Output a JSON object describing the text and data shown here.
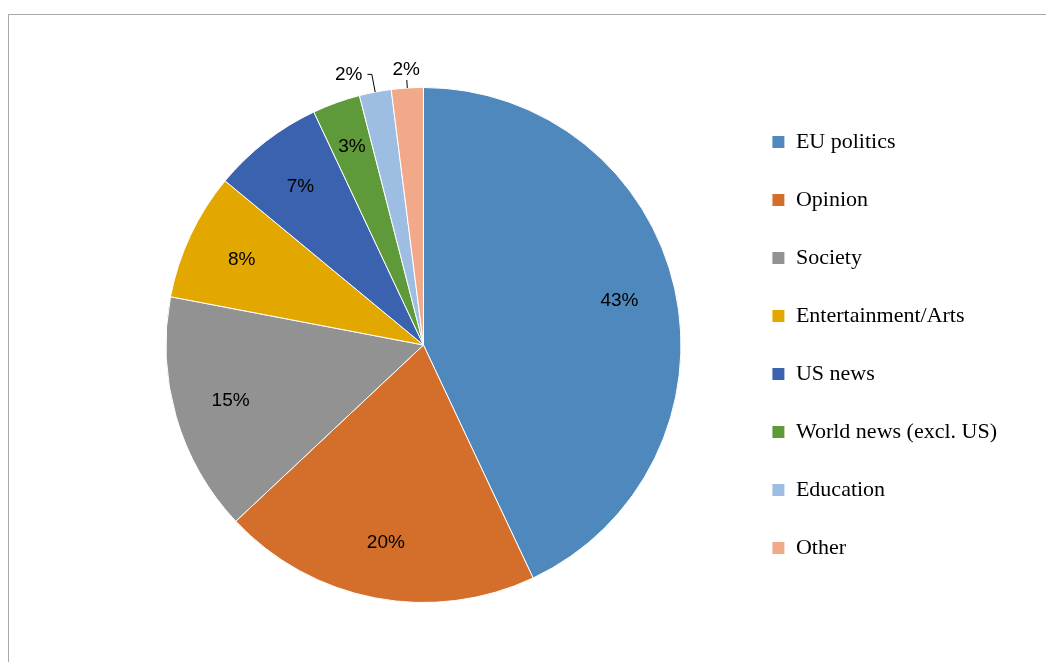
{
  "chart_data": {
    "type": "pie",
    "categories": [
      "EU politics",
      "Opinion",
      "Society",
      "Entertainment/Arts",
      "US news",
      "World news (excl. US)",
      "Education",
      "Other"
    ],
    "values": [
      43,
      20,
      15,
      8,
      7,
      3,
      2,
      2
    ],
    "value_labels": [
      "43%",
      "20%",
      "15%",
      "8%",
      "7%",
      "3%",
      "2%",
      "2%"
    ],
    "colors": [
      "#4f88bd",
      "#d46e2b",
      "#929292",
      "#e2a800",
      "#3a62ae",
      "#5f9a3a",
      "#9dbde3",
      "#f2a98a"
    ],
    "legend": "right"
  }
}
